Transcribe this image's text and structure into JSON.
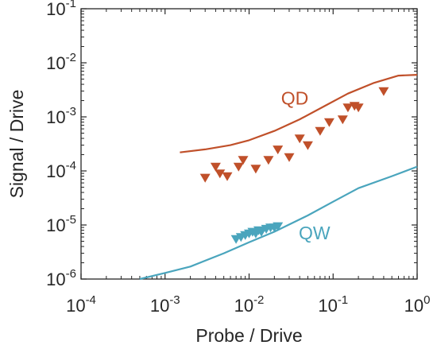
{
  "chart_data": {
    "type": "scatter",
    "xlabel": "Probe / Drive",
    "ylabel": "Signal / Drive",
    "xscale": "log",
    "yscale": "log",
    "xlim": [
      0.0001,
      1
    ],
    "ylim": [
      1e-06,
      0.1
    ],
    "x_ticks": [
      {
        "value": 0.0001,
        "base": "10",
        "exp": "-4"
      },
      {
        "value": 0.001,
        "base": "10",
        "exp": "-3"
      },
      {
        "value": 0.01,
        "base": "10",
        "exp": "-2"
      },
      {
        "value": 0.1,
        "base": "10",
        "exp": "-1"
      },
      {
        "value": 1,
        "base": "10",
        "exp": "0"
      }
    ],
    "y_ticks": [
      {
        "value": 1e-06,
        "base": "10",
        "exp": "-6"
      },
      {
        "value": 1e-05,
        "base": "10",
        "exp": "-5"
      },
      {
        "value": 0.0001,
        "base": "10",
        "exp": "-4"
      },
      {
        "value": 0.001,
        "base": "10",
        "exp": "-3"
      },
      {
        "value": 0.01,
        "base": "10",
        "exp": "-2"
      },
      {
        "value": 0.1,
        "base": "10",
        "exp": "-1"
      }
    ],
    "grid": false,
    "series": [
      {
        "name": "QD",
        "color": "#c0502a",
        "line": {
          "x": [
            0.0015,
            0.003,
            0.006,
            0.01,
            0.02,
            0.04,
            0.08,
            0.15,
            0.3,
            0.6,
            1.0
          ],
          "y": [
            0.00022,
            0.00025,
            0.0003,
            0.00037,
            0.00055,
            0.0009,
            0.0016,
            0.0027,
            0.0042,
            0.0058,
            0.006
          ]
        },
        "markers": {
          "symbol": "triangle-down",
          "x": [
            0.003,
            0.004,
            0.0045,
            0.0055,
            0.0075,
            0.0085,
            0.012,
            0.017,
            0.022,
            0.03,
            0.04,
            0.05,
            0.07,
            0.09,
            0.13,
            0.15,
            0.18,
            0.2,
            0.4
          ],
          "y": [
            7.5e-05,
            0.00012,
            9e-05,
            8e-05,
            0.00012,
            0.00016,
            0.00011,
            0.00016,
            0.00025,
            0.00018,
            0.0004,
            0.0003,
            0.00055,
            0.0008,
            0.0009,
            0.0015,
            0.0016,
            0.0015,
            0.003
          ]
        },
        "label": "QD",
        "label_at": {
          "x": 0.035,
          "y": 0.0017
        }
      },
      {
        "name": "QW",
        "color": "#4aa5bd",
        "line": {
          "x": [
            0.0005,
            0.001,
            0.002,
            0.005,
            0.01,
            0.02,
            0.05,
            0.1,
            0.2,
            0.5,
            1.0
          ],
          "y": [
            1e-06,
            1.3e-06,
            1.7e-06,
            3e-06,
            4.8e-06,
            7.5e-06,
            1.5e-05,
            2.7e-05,
            4.8e-05,
            8e-05,
            0.00012
          ]
        },
        "markers": {
          "symbol": "triangle-down",
          "x": [
            0.007,
            0.008,
            0.009,
            0.01,
            0.011,
            0.012,
            0.013,
            0.014,
            0.016,
            0.018,
            0.02,
            0.022
          ],
          "y": [
            5.5e-06,
            6e-06,
            6.5e-06,
            7e-06,
            7.5e-06,
            7e-06,
            8e-06,
            7.5e-06,
            8.5e-06,
            9e-06,
            9e-06,
            9.5e-06
          ]
        },
        "label": "QW",
        "label_at": {
          "x": 0.06,
          "y": 5.4e-06
        }
      }
    ]
  }
}
